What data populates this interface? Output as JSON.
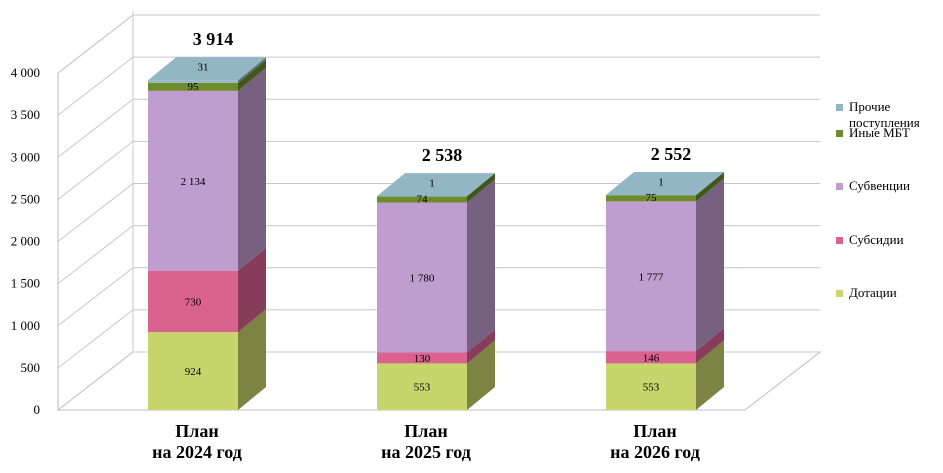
{
  "chart_data": {
    "type": "bar",
    "stacked": true,
    "three_d": true,
    "categories": [
      "План\nна 2024 год",
      "План\nна 2025 год",
      "План\nна 2026 год"
    ],
    "series": [
      {
        "name": "Дотации",
        "color": "#c8d46c",
        "values": [
          924,
          553,
          553
        ]
      },
      {
        "name": "Субсидии",
        "color": "#d9628f",
        "values": [
          730,
          130,
          146
        ]
      },
      {
        "name": "Субвенции",
        "color": "#bf9dcf",
        "values": [
          2134,
          1780,
          1777
        ]
      },
      {
        "name": "Иные МБТ",
        "color": "#6e8c2c",
        "values": [
          95,
          74,
          75
        ]
      },
      {
        "name": "Прочие\nпоступления",
        "color": "#93b6c4",
        "values": [
          31,
          1,
          1
        ]
      }
    ],
    "totals": [
      "3 914",
      "2 538",
      "2 552"
    ],
    "segment_labels": [
      [
        "924",
        "730",
        "2 134",
        "95",
        "31"
      ],
      [
        "553",
        "130",
        "1 780",
        "74",
        "1"
      ],
      [
        "553",
        "146",
        "1 777",
        "75",
        "1"
      ]
    ],
    "y_ticks": [
      "0",
      "500",
      "1 000",
      "1 500",
      "2 000",
      "2 500",
      "3 000",
      "3 500",
      "4 000"
    ],
    "ylim": [
      0,
      4000
    ],
    "grid": true,
    "legend_position": "right",
    "legend_order": [
      4,
      3,
      2,
      1,
      0
    ]
  }
}
